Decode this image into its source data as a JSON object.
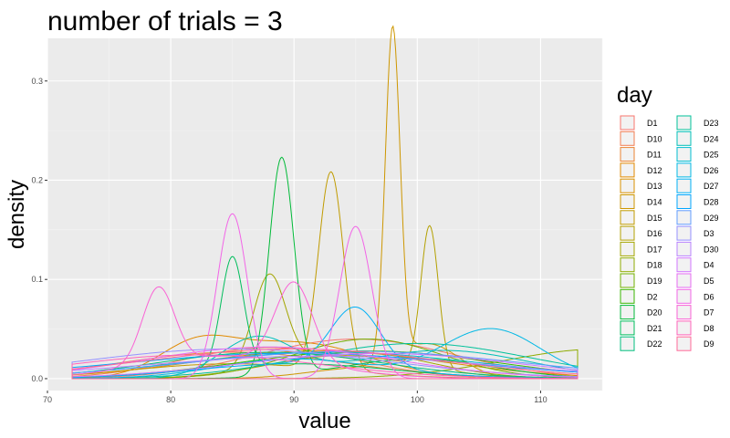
{
  "chart_data": {
    "type": "line",
    "title": "number of trials = 3",
    "xlabel": "value",
    "ylabel": "density",
    "xlim": [
      70,
      115
    ],
    "ylim": [
      -0.012,
      0.343
    ],
    "x_ticks": [
      70,
      80,
      90,
      100,
      110
    ],
    "y_ticks": [
      0.0,
      0.1,
      0.2,
      0.3
    ],
    "y_tick_labels": [
      "0.0",
      "0.1",
      "0.2",
      "0.3"
    ],
    "grid": true,
    "legend_title": "day",
    "legend_position": "right",
    "x_range_fill": [
      72,
      113
    ],
    "series": [
      {
        "name": "D1",
        "color": "#F8766D",
        "components": [
          {
            "mu": 95,
            "sd": 8,
            "w": 0.8
          }
        ]
      },
      {
        "name": "D10",
        "color": "#F27D53",
        "components": [
          {
            "mu": 88,
            "sd": 7,
            "w": 0.55
          }
        ]
      },
      {
        "name": "D11",
        "color": "#EA8331",
        "components": [
          {
            "mu": 85,
            "sd": 9,
            "w": 0.6
          }
        ]
      },
      {
        "name": "D12",
        "color": "#E18A00",
        "components": [
          {
            "mu": 90,
            "sd": 6,
            "w": 0.55
          },
          {
            "mu": 82,
            "sd": 3,
            "w": 0.2
          }
        ]
      },
      {
        "name": "D13",
        "color": "#D89000",
        "components": [
          {
            "mu": 92,
            "sd": 10,
            "w": 0.7
          }
        ]
      },
      {
        "name": "D14",
        "color": "#CD9600",
        "components": [
          {
            "mu": 98,
            "sd": 0.6,
            "w": 0.5
          },
          {
            "mu": 101,
            "sd": 2.5,
            "w": 0.2
          },
          {
            "mu": 95,
            "sd": 4,
            "w": 0.1
          }
        ]
      },
      {
        "name": "D15",
        "color": "#C09B00",
        "components": [
          {
            "mu": 93,
            "sd": 1.0,
            "w": 0.5
          },
          {
            "mu": 85,
            "sd": 8,
            "w": 0.3
          }
        ]
      },
      {
        "name": "D16",
        "color": "#B3A000",
        "components": [
          {
            "mu": 101,
            "sd": 0.7,
            "w": 0.25
          },
          {
            "mu": 94,
            "sd": 6,
            "w": 0.35
          }
        ]
      },
      {
        "name": "D17",
        "color": "#A3A500",
        "components": [
          {
            "mu": 88,
            "sd": 1.3,
            "w": 0.3
          },
          {
            "mu": 95,
            "sd": 6,
            "w": 0.4
          }
        ]
      },
      {
        "name": "D18",
        "color": "#8EAB00",
        "components": [
          {
            "mu": 115,
            "sd": 8,
            "w": 0.6
          }
        ]
      },
      {
        "name": "D19",
        "color": "#72B000",
        "components": [
          {
            "mu": 96,
            "sd": 6,
            "w": 0.6
          }
        ]
      },
      {
        "name": "D2",
        "color": "#39B600",
        "components": [
          {
            "mu": 96,
            "sd": 10,
            "w": 0.7
          }
        ]
      },
      {
        "name": "D20",
        "color": "#00BA38",
        "components": [
          {
            "mu": 89,
            "sd": 1.0,
            "w": 0.55
          },
          {
            "mu": 100,
            "sd": 6,
            "w": 0.3
          }
        ]
      },
      {
        "name": "D21",
        "color": "#00BD5C",
        "components": [
          {
            "mu": 85,
            "sd": 0.9,
            "w": 0.25
          },
          {
            "mu": 90,
            "sd": 8,
            "w": 0.3
          }
        ]
      },
      {
        "name": "D22",
        "color": "#00BF7D",
        "components": [
          {
            "mu": 88,
            "sd": 9,
            "w": 0.6
          }
        ]
      },
      {
        "name": "D23",
        "color": "#00C19A",
        "components": [
          {
            "mu": 100,
            "sd": 9,
            "w": 0.8
          }
        ]
      },
      {
        "name": "D24",
        "color": "#00C0B8",
        "components": [
          {
            "mu": 87,
            "sd": 3,
            "w": 0.3
          },
          {
            "mu": 102,
            "sd": 7,
            "w": 0.5
          }
        ]
      },
      {
        "name": "D25",
        "color": "#00BDD0",
        "components": [
          {
            "mu": 93,
            "sd": 12,
            "w": 0.8
          }
        ]
      },
      {
        "name": "D26",
        "color": "#00B8E5",
        "components": [
          {
            "mu": 106,
            "sd": 4,
            "w": 0.5
          },
          {
            "mu": 90,
            "sd": 6,
            "w": 0.3
          }
        ]
      },
      {
        "name": "D27",
        "color": "#00B0F6",
        "components": [
          {
            "mu": 95,
            "sd": 2,
            "w": 0.3
          },
          {
            "mu": 90,
            "sd": 8,
            "w": 0.3
          }
        ]
      },
      {
        "name": "D28",
        "color": "#00A5FF",
        "components": [
          {
            "mu": 90,
            "sd": 14,
            "w": 0.9
          }
        ]
      },
      {
        "name": "D29",
        "color": "#619CFF",
        "components": [
          {
            "mu": 95,
            "sd": 13,
            "w": 0.9
          }
        ]
      },
      {
        "name": "D3",
        "color": "#9590FF",
        "components": [
          {
            "mu": 85,
            "sd": 12,
            "w": 0.9
          }
        ]
      },
      {
        "name": "D30",
        "color": "#B983FF",
        "components": [
          {
            "mu": 92,
            "sd": 14,
            "w": 0.8
          }
        ]
      },
      {
        "name": "D4",
        "color": "#D176FF",
        "components": [
          {
            "mu": 97,
            "sd": 11,
            "w": 0.7
          }
        ]
      },
      {
        "name": "D5",
        "color": "#E76BF3",
        "components": [
          {
            "mu": 88,
            "sd": 10,
            "w": 0.8
          }
        ]
      },
      {
        "name": "D6",
        "color": "#F265E7",
        "components": [
          {
            "mu": 85,
            "sd": 1.2,
            "w": 0.5
          },
          {
            "mu": 95,
            "sd": 1.3,
            "w": 0.5
          }
        ]
      },
      {
        "name": "D7",
        "color": "#FA62D5",
        "components": [
          {
            "mu": 79,
            "sd": 1.3,
            "w": 0.25
          },
          {
            "mu": 90,
            "sd": 1.5,
            "w": 0.3
          },
          {
            "mu": 85,
            "sd": 7,
            "w": 0.4
          }
        ]
      },
      {
        "name": "D8",
        "color": "#FF63B9",
        "components": [
          {
            "mu": 82,
            "sd": 10,
            "w": 0.6
          }
        ]
      },
      {
        "name": "D9",
        "color": "#FF6A98",
        "components": [
          {
            "mu": 90,
            "sd": 12,
            "w": 0.9
          }
        ]
      }
    ]
  }
}
